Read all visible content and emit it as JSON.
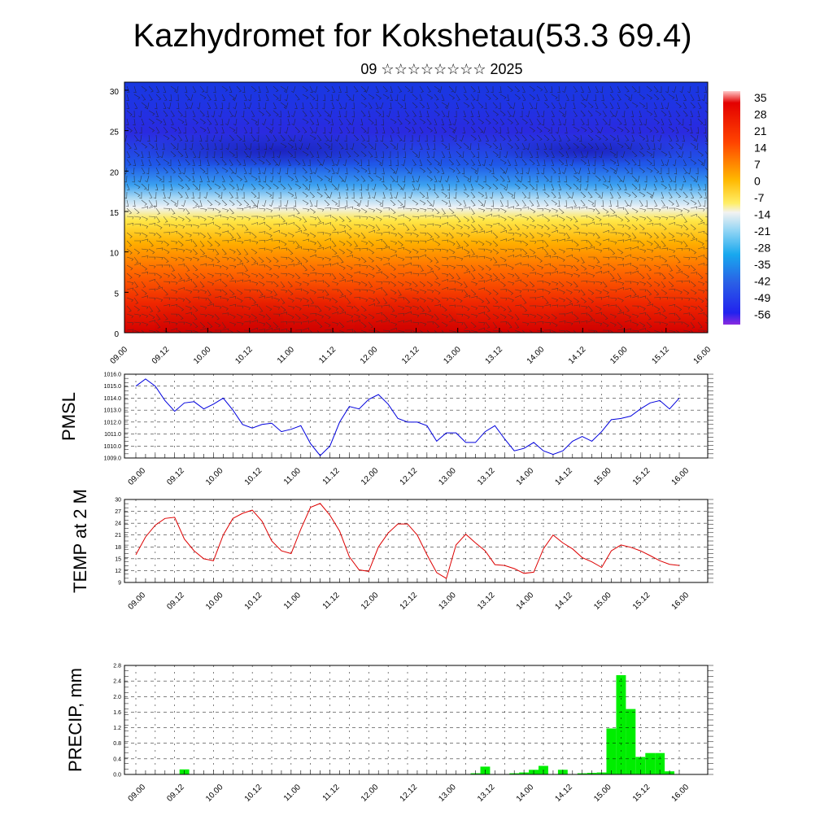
{
  "title": "Kazhydromet for Kokshetau(53.3 69.4)",
  "subtitle": "09 ☆☆☆☆☆☆☆☆ 2025",
  "colors": {
    "pmsl_line": "#0000dd",
    "temp_line": "#dd0000",
    "precip_bar": "#00ee00",
    "grid": "#000000"
  },
  "chart_data": [
    {
      "type": "heatmap",
      "name": "cross-section",
      "x_ticks": [
        "09.00",
        "09.12",
        "10.00",
        "10.12",
        "11.00",
        "11.12",
        "12.00",
        "12.12",
        "13.00",
        "13.12",
        "14.00",
        "14.12",
        "15.00",
        "15.12",
        "16.00"
      ],
      "y_ticks": [
        "0",
        "5",
        "10",
        "15",
        "20",
        "25",
        "30"
      ],
      "ylim": [
        0,
        31
      ],
      "colorbar": {
        "labels": [
          "35",
          "28",
          "21",
          "14",
          "7",
          "0",
          "-7",
          "-14",
          "-21",
          "-28",
          "-35",
          "-42",
          "-49",
          "-56"
        ],
        "range": [
          -63,
          42
        ]
      },
      "overlay": "wind barbs"
    },
    {
      "type": "line",
      "ylabel": "PMSL",
      "x_ticks": [
        "09.00",
        "09.12",
        "10.00",
        "10.12",
        "11.00",
        "11.12",
        "12.00",
        "12.12",
        "13.00",
        "13.12",
        "14.00",
        "14.12",
        "15.00",
        "15.12",
        "16.00"
      ],
      "y_ticks": [
        "1016.0",
        "1015.0",
        "1014.0",
        "1013.0",
        "1012.0",
        "1011.0",
        "1010.0",
        "1009.0"
      ],
      "ylim": [
        1009,
        1016
      ],
      "x": [
        0,
        3,
        6,
        9,
        12,
        15,
        18,
        21,
        24,
        27,
        30,
        33,
        36,
        39,
        42,
        45,
        48,
        51,
        54,
        57,
        60,
        63,
        66,
        69,
        72,
        75,
        78,
        81,
        84,
        87,
        90,
        93,
        96,
        99,
        102,
        105,
        108,
        111,
        114,
        117,
        120,
        123,
        126,
        129,
        132,
        135,
        138,
        141,
        144,
        147,
        150,
        153,
        156,
        159,
        162,
        165,
        168
      ],
      "values": [
        1015.0,
        1015.6,
        1015.0,
        1013.8,
        1012.9,
        1013.6,
        1013.7,
        1013.1,
        1013.5,
        1014.0,
        1013.0,
        1011.8,
        1011.5,
        1011.8,
        1011.9,
        1011.2,
        1011.4,
        1011.7,
        1010.2,
        1009.2,
        1010.0,
        1012.0,
        1013.3,
        1013.1,
        1013.9,
        1014.3,
        1013.5,
        1012.3,
        1012.0,
        1012.0,
        1011.7,
        1010.4,
        1011.1,
        1011.1,
        1010.3,
        1010.3,
        1011.2,
        1011.7,
        1010.6,
        1009.6,
        1009.8,
        1010.3,
        1009.6,
        1009.3,
        1009.6,
        1010.4,
        1010.8,
        1010.4,
        1011.2,
        1012.2,
        1012.3,
        1012.5,
        1013.1,
        1013.6,
        1013.8,
        1013.1,
        1014.0
      ]
    },
    {
      "type": "line",
      "ylabel": "TEMP at 2 M",
      "x_ticks": [
        "09.00",
        "09.12",
        "10.00",
        "10.12",
        "11.00",
        "11.12",
        "12.00",
        "12.12",
        "13.00",
        "13.12",
        "14.00",
        "14.12",
        "15.00",
        "15.12",
        "16.00"
      ],
      "y_ticks": [
        "30",
        "27",
        "24",
        "21",
        "18",
        "15",
        "12",
        "9"
      ],
      "ylim": [
        9,
        30
      ],
      "x": [
        0,
        3,
        6,
        9,
        12,
        15,
        18,
        21,
        24,
        27,
        30,
        33,
        36,
        39,
        42,
        45,
        48,
        51,
        54,
        57,
        60,
        63,
        66,
        69,
        72,
        75,
        78,
        81,
        84,
        87,
        90,
        93,
        96,
        99,
        102,
        105,
        108,
        111,
        114,
        117,
        120,
        123,
        126,
        129,
        132,
        135,
        138,
        141,
        144,
        147,
        150,
        153,
        156,
        159,
        162,
        165,
        168
      ],
      "values": [
        16.0,
        20.5,
        23.5,
        25.2,
        25.5,
        20.0,
        17.0,
        15.0,
        14.5,
        21.0,
        25.2,
        26.5,
        27.3,
        24.5,
        19.5,
        17.0,
        16.3,
        22.5,
        28.0,
        29.0,
        26.0,
        22.0,
        15.5,
        12.2,
        11.8,
        18.0,
        21.5,
        23.8,
        23.8,
        21.0,
        16.0,
        11.5,
        10.0,
        18.5,
        21.2,
        19.0,
        17.0,
        13.5,
        13.3,
        12.5,
        11.3,
        11.6,
        17.5,
        21.0,
        19.0,
        17.5,
        15.3,
        14.2,
        12.8,
        17.0,
        18.5,
        17.9,
        17.0,
        15.8,
        14.5,
        13.6,
        13.3
      ]
    },
    {
      "type": "bar",
      "ylabel": "PRECIP, mm",
      "x_ticks": [
        "09.00",
        "09.12",
        "10.00",
        "10.12",
        "11.00",
        "11.12",
        "12.00",
        "12.12",
        "13.00",
        "13.12",
        "14.00",
        "14.12",
        "15.00",
        "15.12",
        "16.00"
      ],
      "y_ticks": [
        "2.8",
        "2.4",
        "2.0",
        "1.6",
        "1.2",
        "0.8",
        "0.4",
        "0.0"
      ],
      "ylim": [
        0,
        2.8
      ],
      "x": [
        15,
        105,
        108,
        117,
        120,
        123,
        126,
        132,
        138,
        141,
        144,
        147,
        150,
        153,
        156,
        159,
        162,
        165
      ],
      "values": [
        0.13,
        0.03,
        0.2,
        0.03,
        0.05,
        0.12,
        0.22,
        0.12,
        0.03,
        0.04,
        0.05,
        1.18,
        2.55,
        1.68,
        0.45,
        0.55,
        0.55,
        0.08
      ]
    }
  ]
}
